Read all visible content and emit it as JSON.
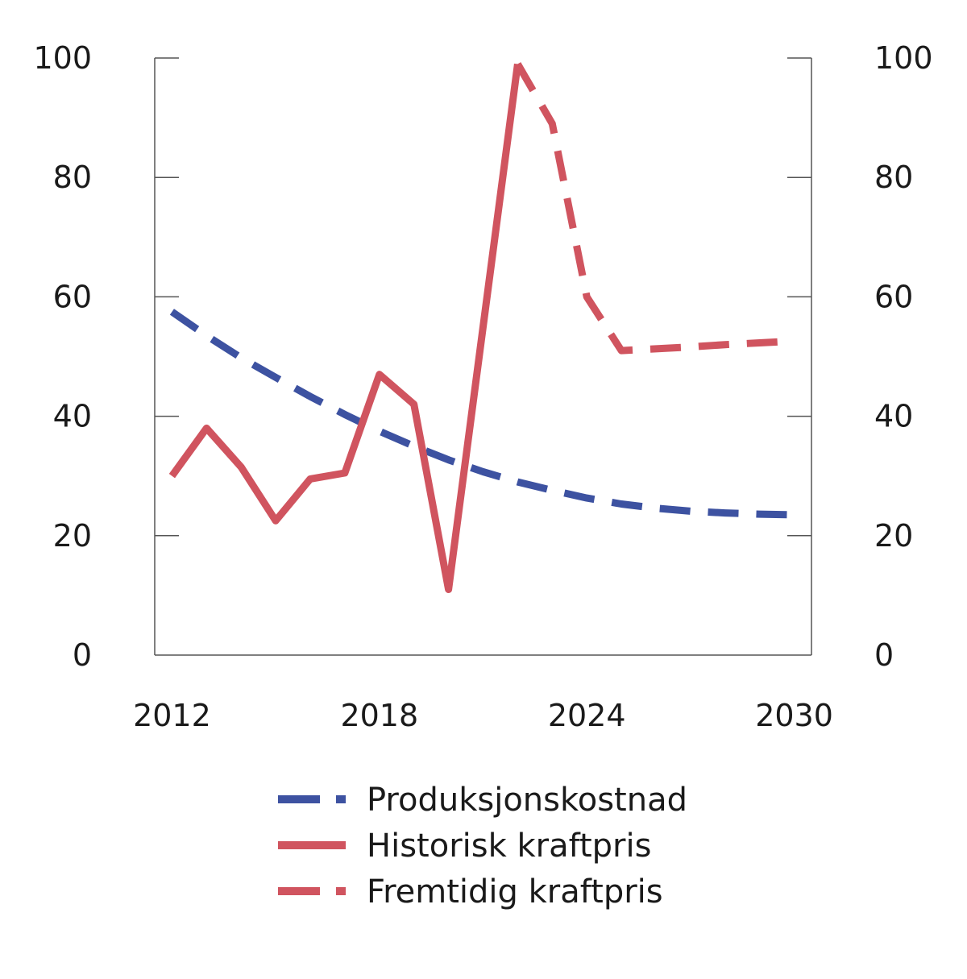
{
  "chart_data": {
    "type": "line",
    "title": "",
    "xlabel": "",
    "ylabel": "",
    "xlim": [
      2011.5,
      2030.5
    ],
    "ylim": [
      0,
      100
    ],
    "y2lim": [
      0,
      100
    ],
    "x_ticks": [
      2012,
      2018,
      2024,
      2030
    ],
    "y_ticks": [
      0,
      20,
      40,
      60,
      80,
      100
    ],
    "grid": false,
    "legend_position": "bottom",
    "series": [
      {
        "name": "Produksjonskostnad",
        "style": "dashed",
        "color": "#3d52a1",
        "x": [
          2012,
          2013,
          2014,
          2015,
          2016,
          2017,
          2018,
          2019,
          2020,
          2021,
          2022,
          2023,
          2024,
          2025,
          2026,
          2027,
          2028,
          2029,
          2030
        ],
        "y": [
          57.5,
          53.5,
          49.8,
          46.5,
          43.3,
          40.3,
          37.5,
          35.0,
          32.7,
          30.7,
          29.0,
          27.6,
          26.3,
          25.3,
          24.6,
          24.1,
          23.8,
          23.6,
          23.5
        ]
      },
      {
        "name": "Historisk kraftpris",
        "style": "solid",
        "color": "#d0545f",
        "x": [
          2012,
          2013,
          2014,
          2015,
          2016,
          2017,
          2018,
          2019,
          2020,
          2022
        ],
        "y": [
          30,
          38,
          31.5,
          22.5,
          29.5,
          30.5,
          47,
          42,
          11,
          99
        ]
      },
      {
        "name": "Fremtidig kraftpris",
        "style": "dashed",
        "color": "#d0545f",
        "x": [
          2022,
          2023,
          2024,
          2025,
          2026,
          2027,
          2028,
          2029,
          2030
        ],
        "y": [
          99,
          89,
          60,
          51,
          51.3,
          51.6,
          52,
          52.3,
          52.6
        ]
      }
    ]
  }
}
